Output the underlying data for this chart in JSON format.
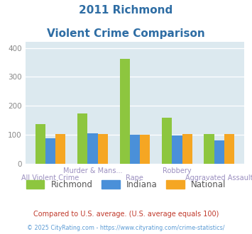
{
  "title_line1": "2011 Richmond",
  "title_line2": "Violent Crime Comparison",
  "categories": [
    "All Violent Crime",
    "Murder & Mans...",
    "Rape",
    "Robbery",
    "Aggravated Assault"
  ],
  "richmond": [
    138,
    173,
    363,
    158,
    103
  ],
  "indiana": [
    88,
    105,
    101,
    97,
    80
  ],
  "national": [
    103,
    102,
    101,
    103,
    102
  ],
  "color_richmond": "#8dc63f",
  "color_indiana": "#4a90d9",
  "color_national": "#f5a623",
  "ylim": [
    0,
    420
  ],
  "yticks": [
    0,
    100,
    200,
    300,
    400
  ],
  "background_color": "#dce9ef",
  "title_color": "#2e6da4",
  "xlabel_color": "#9b8fc0",
  "legend_text_color": "#555555",
  "footnote1": "Compared to U.S. average. (U.S. average equals 100)",
  "footnote2": "© 2025 CityRating.com - https://www.cityrating.com/crime-statistics/",
  "footnote1_color": "#c0392b",
  "footnote2_color": "#5b9bd5",
  "legend_labels": [
    "Richmond",
    "Indiana",
    "National"
  ],
  "upper_labels": [
    "",
    "Murder & Mans...",
    "",
    "Robbery",
    ""
  ],
  "lower_labels": [
    "All Violent Crime",
    "",
    "Rape",
    "",
    "Aggravated Assault"
  ]
}
